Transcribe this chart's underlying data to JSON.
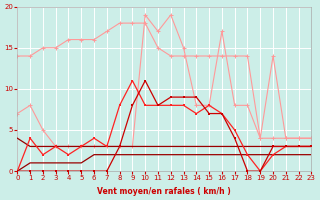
{
  "xlabel": "Vent moyen/en rafales ( km/h )",
  "background_color": "#cceee8",
  "grid_color": "#ffffff",
  "x": [
    0,
    1,
    2,
    3,
    4,
    5,
    6,
    7,
    8,
    9,
    10,
    11,
    12,
    13,
    14,
    15,
    16,
    17,
    18,
    19,
    20,
    21,
    22,
    23
  ],
  "pink_line1": [
    14,
    14,
    15,
    15,
    16,
    16,
    16,
    17,
    18,
    18,
    18,
    15,
    14,
    14,
    14,
    14,
    14,
    14,
    14,
    4,
    14,
    4,
    4,
    4
  ],
  "pink_line2": [
    7,
    8,
    5,
    3,
    3,
    3,
    3,
    3,
    3,
    3,
    19,
    17,
    19,
    15,
    8,
    8,
    17,
    8,
    8,
    4,
    4,
    4,
    4,
    4
  ],
  "dark_line1": [
    4,
    3,
    3,
    3,
    3,
    3,
    3,
    3,
    3,
    3,
    3,
    3,
    3,
    3,
    3,
    3,
    3,
    3,
    3,
    3,
    3,
    3,
    3,
    3
  ],
  "dark_line2": [
    0,
    1,
    1,
    1,
    1,
    1,
    2,
    2,
    2,
    2,
    2,
    2,
    2,
    2,
    2,
    2,
    2,
    2,
    2,
    2,
    2,
    2,
    2,
    2
  ],
  "red_line1_y": [
    0,
    4,
    2,
    3,
    2,
    3,
    4,
    3,
    8,
    11,
    8,
    8,
    8,
    8,
    7,
    8,
    7,
    5,
    2,
    0,
    2,
    3,
    3,
    3
  ],
  "red_line2_y": [
    0,
    0,
    0,
    0,
    0,
    0,
    0,
    0,
    3,
    8,
    11,
    8,
    9,
    9,
    9,
    7,
    7,
    4,
    0,
    0,
    3,
    3,
    3,
    3
  ],
  "ylim": [
    0,
    20
  ],
  "xlim": [
    0,
    23
  ],
  "yticks": [
    0,
    5,
    10,
    15,
    20
  ],
  "xticks": [
    0,
    1,
    2,
    3,
    4,
    5,
    6,
    7,
    8,
    9,
    10,
    11,
    12,
    13,
    14,
    15,
    16,
    17,
    18,
    19,
    20,
    21,
    22,
    23
  ],
  "color_light_pink": "#ff9999",
  "color_dark_red": "#cc0000",
  "color_bright_red": "#ff2222",
  "color_dark": "#990000"
}
